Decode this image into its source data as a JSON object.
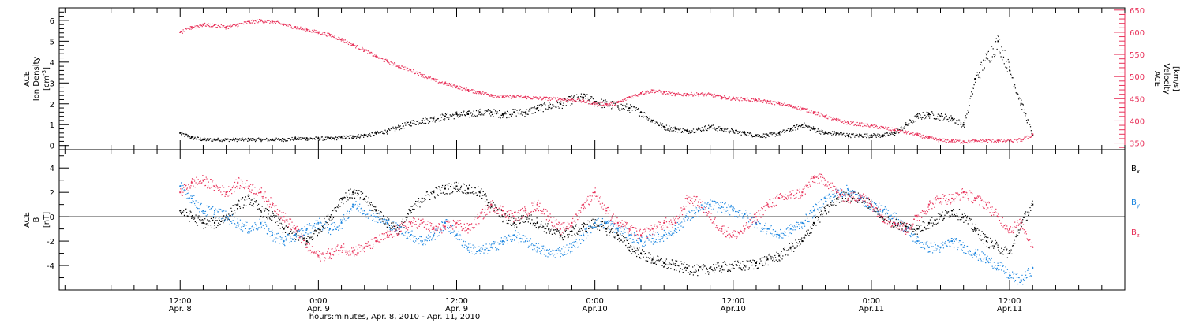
{
  "chart_data": [
    {
      "type": "scatter",
      "panel": "plasma",
      "left_axis": {
        "label_lines": [
          "ACE",
          "Ion Density"
        ],
        "unit_prefix": "[cm",
        "unit_exp": "-3",
        "unit_suffix": "]",
        "ylim": [
          -0.2,
          6.6
        ],
        "ticks": [
          0,
          1,
          2,
          3,
          4,
          5,
          6
        ],
        "ticklabels": [
          "0",
          "1",
          "2",
          "3",
          "4",
          "5",
          "6"
        ]
      },
      "right_axis": {
        "label_lines": [
          "ACE",
          "Velocity",
          "[km/s]"
        ],
        "ylim": [
          335,
          655
        ],
        "ticks": [
          350,
          400,
          450,
          500,
          550,
          600,
          650
        ],
        "ticklabels": [
          "350",
          "400",
          "450",
          "500",
          "550",
          "600",
          "650"
        ],
        "color": "#e8325a"
      },
      "series": [
        {
          "axis": "left",
          "color": "#000000",
          "x": [
            0,
            1,
            2,
            3,
            4,
            5,
            6,
            7,
            8,
            9,
            10,
            11,
            12,
            13,
            14,
            15,
            16,
            17,
            18,
            19,
            20,
            21,
            22,
            23,
            24,
            25,
            26,
            27,
            28,
            29,
            30,
            31,
            32,
            33,
            34,
            35,
            36,
            37,
            38,
            39,
            40,
            41,
            42,
            43,
            44,
            45,
            46,
            47,
            48,
            49,
            50,
            51,
            52,
            53,
            54,
            55,
            56,
            57,
            58,
            59,
            60,
            61,
            62,
            63,
            64,
            65,
            66,
            67,
            68,
            69,
            70,
            71,
            72,
            73,
            74
          ],
          "y": [
            0.6,
            0.4,
            0.3,
            0.3,
            0.3,
            0.3,
            0.3,
            0.3,
            0.3,
            0.3,
            0.35,
            0.35,
            0.35,
            0.35,
            0.4,
            0.45,
            0.5,
            0.6,
            0.7,
            0.9,
            1.1,
            1.2,
            1.3,
            1.4,
            1.5,
            1.5,
            1.6,
            1.6,
            1.5,
            1.6,
            1.6,
            1.8,
            1.9,
            2.0,
            2.2,
            2.3,
            2.1,
            2.0,
            1.9,
            1.8,
            1.6,
            1.2,
            0.9,
            0.8,
            0.7,
            0.8,
            0.9,
            0.8,
            0.7,
            0.6,
            0.5,
            0.5,
            0.6,
            0.8,
            1.0,
            0.8,
            0.6,
            0.6,
            0.5,
            0.5,
            0.5,
            0.5,
            0.6,
            1.0,
            1.4,
            1.5,
            1.4,
            1.3,
            1.0,
            3.2,
            4.2,
            5.0,
            3.6,
            2.0,
            0.5
          ]
        },
        {
          "axis": "right",
          "color": "#e8325a",
          "x": [
            0,
            1,
            2,
            3,
            4,
            5,
            6,
            7,
            8,
            9,
            10,
            11,
            12,
            13,
            14,
            15,
            16,
            17,
            18,
            19,
            20,
            21,
            22,
            23,
            24,
            25,
            26,
            27,
            28,
            29,
            30,
            31,
            32,
            33,
            34,
            35,
            36,
            37,
            38,
            39,
            40,
            41,
            42,
            43,
            44,
            45,
            46,
            47,
            48,
            49,
            50,
            51,
            52,
            53,
            54,
            55,
            56,
            57,
            58,
            59,
            60,
            61,
            62,
            63,
            64,
            65,
            66,
            67,
            68,
            69,
            70,
            71,
            72,
            73,
            74
          ],
          "y": [
            600,
            612,
            618,
            616,
            612,
            618,
            624,
            627,
            624,
            618,
            612,
            606,
            600,
            594,
            584,
            572,
            560,
            546,
            534,
            524,
            515,
            504,
            493,
            485,
            478,
            470,
            465,
            459,
            455,
            455,
            454,
            452,
            451,
            450,
            448,
            445,
            441,
            438,
            442,
            454,
            463,
            469,
            465,
            460,
            461,
            461,
            460,
            454,
            451,
            450,
            447,
            444,
            440,
            434,
            428,
            420,
            411,
            402,
            396,
            393,
            390,
            385,
            380,
            375,
            369,
            362,
            357,
            355,
            354,
            355,
            356,
            356,
            355,
            358,
            370
          ]
        }
      ],
      "ref_lines": []
    },
    {
      "type": "scatter",
      "panel": "magnetic",
      "left_axis": {
        "label_lines": [
          "ACE",
          "B",
          "[nT]"
        ],
        "ylim": [
          -6.0,
          5.5
        ],
        "ticks": [
          -4,
          -2,
          0,
          2,
          4
        ],
        "ticklabels": [
          "-4",
          "-2",
          "0",
          "2",
          "4"
        ]
      },
      "legend": [
        {
          "label": "B",
          "sub": "x",
          "color": "#000000"
        },
        {
          "label": "B",
          "sub": "y",
          "color": "#1c86e0"
        },
        {
          "label": "B",
          "sub": "z",
          "color": "#e8325a"
        }
      ],
      "legend_placement": "right",
      "series": [
        {
          "name": "Bx",
          "color": "#000000",
          "x": [
            0,
            1,
            2,
            3,
            4,
            5,
            6,
            7,
            8,
            9,
            10,
            11,
            12,
            13,
            14,
            15,
            16,
            17,
            18,
            19,
            20,
            21,
            22,
            23,
            24,
            25,
            26,
            27,
            28,
            29,
            30,
            31,
            32,
            33,
            34,
            35,
            36,
            37,
            38,
            39,
            40,
            41,
            42,
            43,
            44,
            45,
            46,
            47,
            48,
            49,
            50,
            51,
            52,
            53,
            54,
            55,
            56,
            57,
            58,
            59,
            60,
            61,
            62,
            63,
            64,
            65,
            66,
            67,
            68,
            69,
            70,
            71,
            72,
            73,
            74
          ],
          "y": [
            0.5,
            0.0,
            -0.5,
            -0.5,
            0.0,
            1.0,
            1.5,
            0.5,
            0.0,
            -1.0,
            -1.5,
            -2.0,
            -1.0,
            0.0,
            1.5,
            2.0,
            1.5,
            0.5,
            -0.5,
            -1.0,
            0.5,
            1.5,
            2.0,
            2.3,
            2.5,
            2.3,
            2.0,
            1.0,
            0.0,
            -0.5,
            0.0,
            -0.5,
            -1.0,
            -1.5,
            -1.2,
            -0.8,
            -0.5,
            -1.0,
            -1.5,
            -2.5,
            -3.0,
            -3.5,
            -3.8,
            -4.0,
            -4.2,
            -4.4,
            -4.2,
            -4.1,
            -4.0,
            -4.0,
            -3.8,
            -3.5,
            -3.2,
            -2.5,
            -2.0,
            -0.5,
            0.5,
            1.5,
            1.8,
            1.5,
            1.0,
            0.0,
            -0.5,
            -0.8,
            -1.0,
            -0.5,
            0.0,
            0.5,
            0.0,
            -1.0,
            -2.0,
            -2.5,
            -3.0,
            -0.5,
            1.0
          ]
        },
        {
          "name": "By",
          "color": "#1c86e0",
          "x": [
            0,
            1,
            2,
            3,
            4,
            5,
            6,
            7,
            8,
            9,
            10,
            11,
            12,
            13,
            14,
            15,
            16,
            17,
            18,
            19,
            20,
            21,
            22,
            23,
            24,
            25,
            26,
            27,
            28,
            29,
            30,
            31,
            32,
            33,
            34,
            35,
            36,
            37,
            38,
            39,
            40,
            41,
            42,
            43,
            44,
            45,
            46,
            47,
            48,
            49,
            50,
            51,
            52,
            53,
            54,
            55,
            56,
            57,
            58,
            59,
            60,
            61,
            62,
            63,
            64,
            65,
            66,
            67,
            68,
            69,
            70,
            71,
            72,
            73,
            74
          ],
          "y": [
            2.5,
            1.5,
            0.5,
            0.5,
            0.0,
            -0.5,
            -1.0,
            -0.5,
            -1.5,
            -2.0,
            -1.5,
            -1.0,
            -0.5,
            -1.0,
            -0.5,
            1.0,
            0.5,
            0.0,
            -0.5,
            -1.0,
            -1.5,
            -2.0,
            -1.5,
            -0.5,
            -1.5,
            -2.5,
            -2.8,
            -2.5,
            -2.0,
            -1.5,
            -2.0,
            -2.5,
            -3.0,
            -2.8,
            -2.5,
            -1.5,
            -0.5,
            -0.5,
            -1.0,
            -1.5,
            -2.0,
            -1.8,
            -1.5,
            -1.0,
            0.0,
            0.5,
            1.0,
            0.8,
            0.5,
            0.2,
            -0.5,
            -1.0,
            -1.5,
            -1.0,
            -0.5,
            0.5,
            1.5,
            2.0,
            2.2,
            1.5,
            1.0,
            0.5,
            0.0,
            -1.0,
            -2.0,
            -2.5,
            -2.5,
            -2.0,
            -2.5,
            -3.0,
            -3.5,
            -4.0,
            -4.8,
            -5.2,
            -4.2
          ]
        },
        {
          "name": "Bz",
          "color": "#e8325a",
          "x": [
            0,
            1,
            2,
            3,
            4,
            5,
            6,
            7,
            8,
            9,
            10,
            11,
            12,
            13,
            14,
            15,
            16,
            17,
            18,
            19,
            20,
            21,
            22,
            23,
            24,
            25,
            26,
            27,
            28,
            29,
            30,
            31,
            32,
            33,
            34,
            35,
            36,
            37,
            38,
            39,
            40,
            41,
            42,
            43,
            44,
            45,
            46,
            47,
            48,
            49,
            50,
            51,
            52,
            53,
            54,
            55,
            56,
            57,
            58,
            59,
            60,
            61,
            62,
            63,
            64,
            65,
            66,
            67,
            68,
            69,
            70,
            71,
            72,
            73,
            74
          ],
          "y": [
            2.0,
            2.8,
            3.0,
            2.5,
            2.0,
            2.8,
            2.5,
            2.0,
            1.0,
            0.0,
            -1.0,
            -2.5,
            -3.2,
            -3.0,
            -2.5,
            -2.8,
            -2.5,
            -2.0,
            -1.5,
            -1.0,
            -0.5,
            -0.5,
            -1.0,
            -0.8,
            -0.5,
            -1.0,
            0.0,
            1.0,
            0.5,
            0.0,
            0.5,
            1.0,
            0.0,
            -1.0,
            -0.5,
            1.0,
            2.0,
            0.5,
            -0.5,
            -1.0,
            -1.5,
            -1.0,
            -0.5,
            -0.5,
            1.5,
            1.2,
            0.0,
            -1.0,
            -1.5,
            -1.0,
            0.0,
            1.0,
            1.5,
            1.8,
            2.0,
            3.2,
            3.0,
            2.0,
            1.5,
            1.8,
            1.0,
            0.0,
            -0.5,
            -1.0,
            0.0,
            1.0,
            1.5,
            1.5,
            2.0,
            1.5,
            1.0,
            0.0,
            -1.0,
            -0.5,
            -2.5
          ]
        }
      ],
      "ref_lines": [
        0
      ]
    }
  ],
  "time_axis": {
    "xlim": [
      -10.5,
      82.0
    ],
    "data_end": 74,
    "ticks": [
      {
        "x": 0,
        "l1": "12:00",
        "l2": "Apr. 8"
      },
      {
        "x": 12,
        "l1": "0:00",
        "l2": "Apr. 9"
      },
      {
        "x": 24,
        "l1": "12:00",
        "l2": "Apr. 9"
      },
      {
        "x": 36,
        "l1": "0:00",
        "l2": "Apr.10"
      },
      {
        "x": 48,
        "l1": "12:00",
        "l2": "Apr.10"
      },
      {
        "x": 60,
        "l1": "0:00",
        "l2": "Apr.11"
      },
      {
        "x": 72,
        "l1": "12:00",
        "l2": "Apr.11"
      }
    ],
    "xlabel": "hours:minutes, Apr.  8, 2010 - Apr. 11, 2010"
  }
}
